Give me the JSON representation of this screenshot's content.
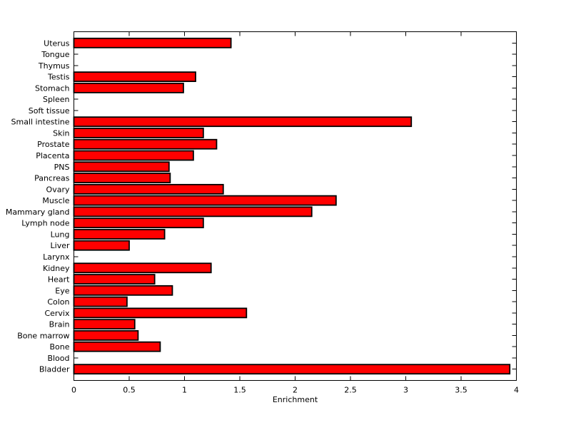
{
  "chart_data": {
    "type": "bar",
    "orientation": "horizontal",
    "title": "",
    "xlabel": "Enrichment",
    "ylabel": "",
    "xlim": [
      0,
      4
    ],
    "xticks": [
      0,
      0.5,
      1,
      1.5,
      2,
      2.5,
      3,
      3.5,
      4
    ],
    "xtick_labels": [
      "0",
      "0.5",
      "1",
      "1.5",
      "2",
      "2.5",
      "3",
      "3.5",
      "4"
    ],
    "grid": false,
    "legend": null,
    "bar_color": "#FF0000",
    "bar_edge_color": "#000000",
    "axis_color": "#000000",
    "background_color": "#FFFFFF",
    "categories": [
      "Uterus",
      "Tongue",
      "Thymus",
      "Testis",
      "Stomach",
      "Spleen",
      "Soft tissue",
      "Small intestine",
      "Skin",
      "Prostate",
      "Placenta",
      "PNS",
      "Pancreas",
      "Ovary",
      "Muscle",
      "Mammary gland",
      "Lymph node",
      "Lung",
      "Liver",
      "Larynx",
      "Kidney",
      "Heart",
      "Eye",
      "Colon",
      "Cervix",
      "Brain",
      "Bone marrow",
      "Bone",
      "Blood",
      "Bladder"
    ],
    "values": [
      1.42,
      0,
      0,
      1.1,
      0.99,
      0,
      0,
      3.05,
      1.17,
      1.29,
      1.08,
      0.86,
      0.87,
      1.35,
      2.37,
      2.15,
      1.17,
      0.82,
      0.5,
      0,
      1.24,
      0.73,
      0.89,
      0.48,
      1.56,
      0.55,
      0.58,
      0.78,
      0,
      3.94
    ]
  }
}
